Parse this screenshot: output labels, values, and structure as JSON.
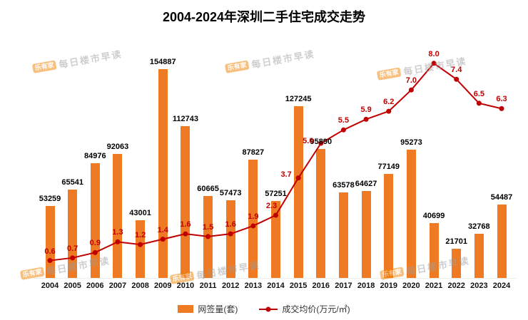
{
  "title": "2004-2024年深圳二手住宅成交走势",
  "watermark": {
    "logo": "乐有家",
    "text": "每日楼市早读"
  },
  "legend": {
    "bars": "网签量(套)",
    "line": "成交均价(万元/㎡)"
  },
  "colors": {
    "bar": "#ee7b23",
    "line": "#c00000",
    "bar_label": "#000000"
  },
  "chart_data": {
    "type": "bar+line",
    "title": "2004-2024年深圳二手住宅成交走势",
    "categories": [
      2004,
      2005,
      2006,
      2007,
      2008,
      2009,
      2010,
      2011,
      2012,
      2013,
      2014,
      2015,
      2016,
      2017,
      2018,
      2019,
      2020,
      2021,
      2022,
      2023,
      2024
    ],
    "series": [
      {
        "name": "网签量(套)",
        "type": "bar",
        "axis": "left",
        "values": [
          53259,
          65541,
          84976,
          92063,
          43001,
          154887,
          112743,
          60665,
          57473,
          87827,
          57251,
          127245,
          95890,
          63578,
          64627,
          77149,
          95273,
          40699,
          21701,
          32768,
          54487
        ]
      },
      {
        "name": "成交均价(万元/㎡)",
        "type": "line",
        "axis": "right",
        "values": [
          0.6,
          0.7,
          0.9,
          1.3,
          1.2,
          1.4,
          1.6,
          1.5,
          1.6,
          1.9,
          2.3,
          3.7,
          5.0,
          5.5,
          5.9,
          6.2,
          7.0,
          8.0,
          7.4,
          6.5,
          6.3
        ]
      }
    ],
    "xlabel": "",
    "ylabel_left": "网签量(套)",
    "ylabel_right": "成交均价(万元/㎡)",
    "ylim_bar": [
      0,
      160000
    ],
    "ylim_line": [
      0,
      8.5
    ],
    "grid": false,
    "legend_position": "bottom",
    "data_labels": true
  }
}
